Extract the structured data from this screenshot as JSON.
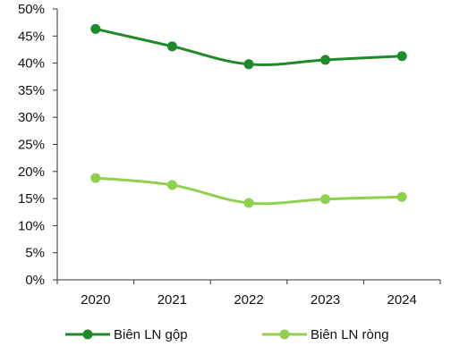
{
  "chart_data": {
    "type": "line",
    "title": "",
    "xlabel": "",
    "ylabel": "",
    "categories": [
      "2020",
      "2021",
      "2022",
      "2023",
      "2024"
    ],
    "ylim": [
      0,
      50
    ],
    "yticks": [
      0,
      5,
      10,
      15,
      20,
      25,
      30,
      35,
      40,
      45,
      50
    ],
    "ytick_labels": [
      "0%",
      "5%",
      "10%",
      "15%",
      "20%",
      "25%",
      "30%",
      "35%",
      "40%",
      "45%",
      "50%"
    ],
    "grid": false,
    "legend_position": "bottom",
    "series": [
      {
        "name": "Biên LN gộp",
        "color": "#1f8a2a",
        "values": [
          46.3,
          43.1,
          39.8,
          40.6,
          41.3
        ]
      },
      {
        "name": "Biên LN ròng",
        "color": "#8fd14f",
        "values": [
          18.8,
          17.5,
          14.2,
          14.9,
          15.3
        ]
      }
    ]
  }
}
